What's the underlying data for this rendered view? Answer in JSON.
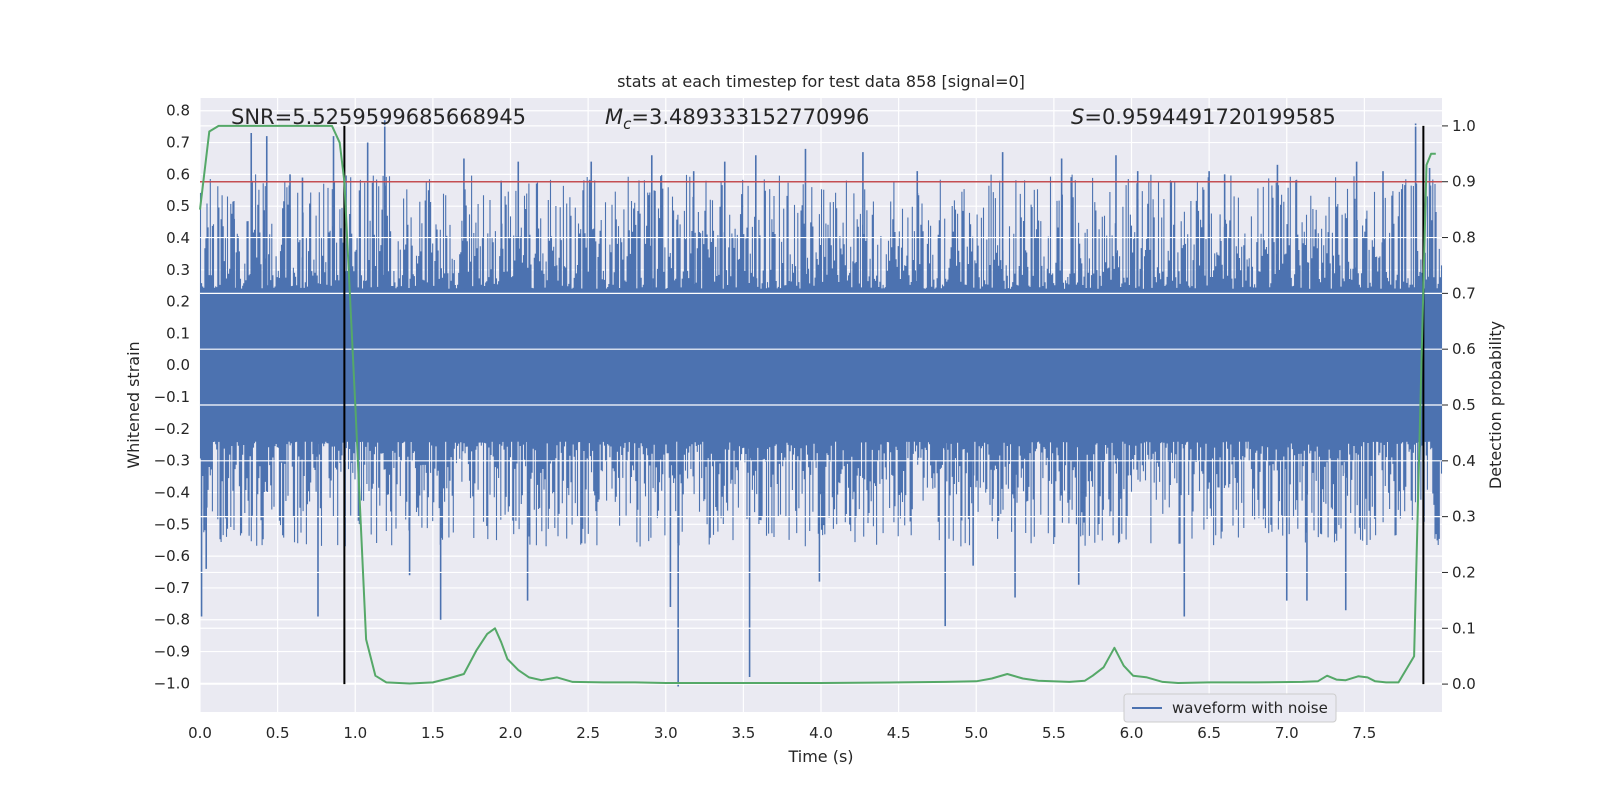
{
  "chart_data": {
    "type": "line",
    "title": "stats at each timestep for test data 858 [signal=0]",
    "xlabel": "Time (s)",
    "ylabel": "Whitened strain",
    "y2label": "Detection probability",
    "xlim": [
      0.0,
      8.0
    ],
    "ylim": [
      -1.09,
      0.84
    ],
    "y2lim": [
      -0.05,
      1.05
    ],
    "xticks": [
      "0.0",
      "0.5",
      "1.0",
      "1.5",
      "2.0",
      "2.5",
      "3.0",
      "3.5",
      "4.0",
      "4.5",
      "5.0",
      "5.5",
      "6.0",
      "6.5",
      "7.0",
      "7.5"
    ],
    "yticks": [
      "0.8",
      "0.7",
      "0.6",
      "0.5",
      "0.4",
      "0.3",
      "0.2",
      "0.1",
      "0.0",
      "-0.1",
      "-0.2",
      "-0.3",
      "-0.4",
      "-0.5",
      "-0.6",
      "-0.7",
      "-0.8",
      "-0.9",
      "-1.0"
    ],
    "y2ticks": [
      "1.0",
      "0.9",
      "0.8",
      "0.7",
      "0.6",
      "0.5",
      "0.4",
      "0.3",
      "0.2",
      "0.1",
      "0.0"
    ],
    "grid": true,
    "legend_position": "lower-right",
    "annotations": {
      "snr": "SNR=5.5259599685668945",
      "mc_symbol": "M",
      "mc_sub": "c",
      "mc_value": "=3.489333152770996",
      "s_symbol": "S",
      "s_value": "=0.9594491720199585"
    },
    "threshold_y2": 0.9,
    "vlines_x": [
      0.93,
      7.88
    ],
    "series": [
      {
        "name": "waveform with noise",
        "kind": "strain",
        "color": "#4c72b0",
        "base_band": 0.24,
        "peaks": [
          {
            "x": 0.01,
            "y": -0.79
          },
          {
            "x": 0.04,
            "y": -0.64
          },
          {
            "x": 0.22,
            "y": 0.46
          },
          {
            "x": 0.33,
            "y": 0.73
          },
          {
            "x": 0.43,
            "y": 0.72
          },
          {
            "x": 0.58,
            "y": 0.6
          },
          {
            "x": 0.66,
            "y": 0.59
          },
          {
            "x": 0.76,
            "y": -0.79
          },
          {
            "x": 0.86,
            "y": 0.72
          },
          {
            "x": 1.08,
            "y": 0.7
          },
          {
            "x": 1.19,
            "y": 0.77
          },
          {
            "x": 1.35,
            "y": -0.66
          },
          {
            "x": 1.55,
            "y": -0.8
          },
          {
            "x": 1.7,
            "y": 0.65
          },
          {
            "x": 1.94,
            "y": 0.58
          },
          {
            "x": 2.05,
            "y": 0.64
          },
          {
            "x": 2.11,
            "y": -0.74
          },
          {
            "x": 2.52,
            "y": 0.64
          },
          {
            "x": 2.91,
            "y": 0.66
          },
          {
            "x": 3.03,
            "y": -0.76
          },
          {
            "x": 3.08,
            "y": -1.01
          },
          {
            "x": 3.18,
            "y": 0.61
          },
          {
            "x": 3.38,
            "y": 0.64
          },
          {
            "x": 3.54,
            "y": -0.98
          },
          {
            "x": 3.58,
            "y": 0.66
          },
          {
            "x": 3.9,
            "y": 0.68
          },
          {
            "x": 3.99,
            "y": -0.68
          },
          {
            "x": 4.27,
            "y": 0.67
          },
          {
            "x": 4.62,
            "y": 0.61
          },
          {
            "x": 4.8,
            "y": -0.82
          },
          {
            "x": 4.98,
            "y": -0.63
          },
          {
            "x": 5.17,
            "y": 0.67
          },
          {
            "x": 5.25,
            "y": -0.73
          },
          {
            "x": 5.55,
            "y": 0.65
          },
          {
            "x": 5.66,
            "y": -0.69
          },
          {
            "x": 5.9,
            "y": 0.66
          },
          {
            "x": 6.04,
            "y": 0.61
          },
          {
            "x": 6.34,
            "y": -0.79
          },
          {
            "x": 6.5,
            "y": 0.61
          },
          {
            "x": 6.6,
            "y": 0.6
          },
          {
            "x": 6.94,
            "y": 0.63
          },
          {
            "x": 7.0,
            "y": -0.74
          },
          {
            "x": 7.13,
            "y": -0.74
          },
          {
            "x": 7.38,
            "y": -0.77
          },
          {
            "x": 7.45,
            "y": 0.64
          },
          {
            "x": 7.62,
            "y": 0.61
          },
          {
            "x": 7.83,
            "y": 0.76
          },
          {
            "x": 7.92,
            "y": 0.62
          }
        ]
      },
      {
        "name": "Detection probability",
        "kind": "probability",
        "color": "#55a868",
        "x": [
          0.0,
          0.06,
          0.12,
          0.25,
          0.5,
          0.75,
          0.85,
          0.9,
          0.93,
          1.0,
          1.07,
          1.13,
          1.2,
          1.35,
          1.5,
          1.6,
          1.7,
          1.78,
          1.85,
          1.9,
          1.94,
          1.98,
          2.05,
          2.12,
          2.2,
          2.3,
          2.4,
          2.6,
          2.8,
          3.0,
          3.3,
          3.6,
          4.0,
          4.5,
          4.8,
          5.0,
          5.1,
          5.2,
          5.3,
          5.4,
          5.6,
          5.7,
          5.75,
          5.82,
          5.89,
          5.95,
          6.01,
          6.1,
          6.2,
          6.3,
          6.5,
          6.8,
          7.1,
          7.2,
          7.26,
          7.32,
          7.38,
          7.46,
          7.52,
          7.57,
          7.64,
          7.72,
          7.82,
          7.87,
          7.9,
          7.93,
          7.96
        ],
        "y": [
          0.85,
          0.99,
          1.0,
          1.0,
          1.0,
          1.0,
          1.0,
          0.97,
          0.9,
          0.5,
          0.08,
          0.015,
          0.003,
          0.001,
          0.003,
          0.01,
          0.018,
          0.06,
          0.09,
          0.1,
          0.075,
          0.045,
          0.025,
          0.012,
          0.007,
          0.012,
          0.004,
          0.003,
          0.003,
          0.002,
          0.002,
          0.002,
          0.002,
          0.003,
          0.004,
          0.005,
          0.01,
          0.018,
          0.01,
          0.006,
          0.004,
          0.006,
          0.015,
          0.03,
          0.065,
          0.033,
          0.015,
          0.012,
          0.004,
          0.002,
          0.003,
          0.003,
          0.004,
          0.005,
          0.015,
          0.008,
          0.007,
          0.014,
          0.012,
          0.005,
          0.003,
          0.003,
          0.05,
          0.6,
          0.93,
          0.95,
          0.95
        ]
      }
    ]
  }
}
